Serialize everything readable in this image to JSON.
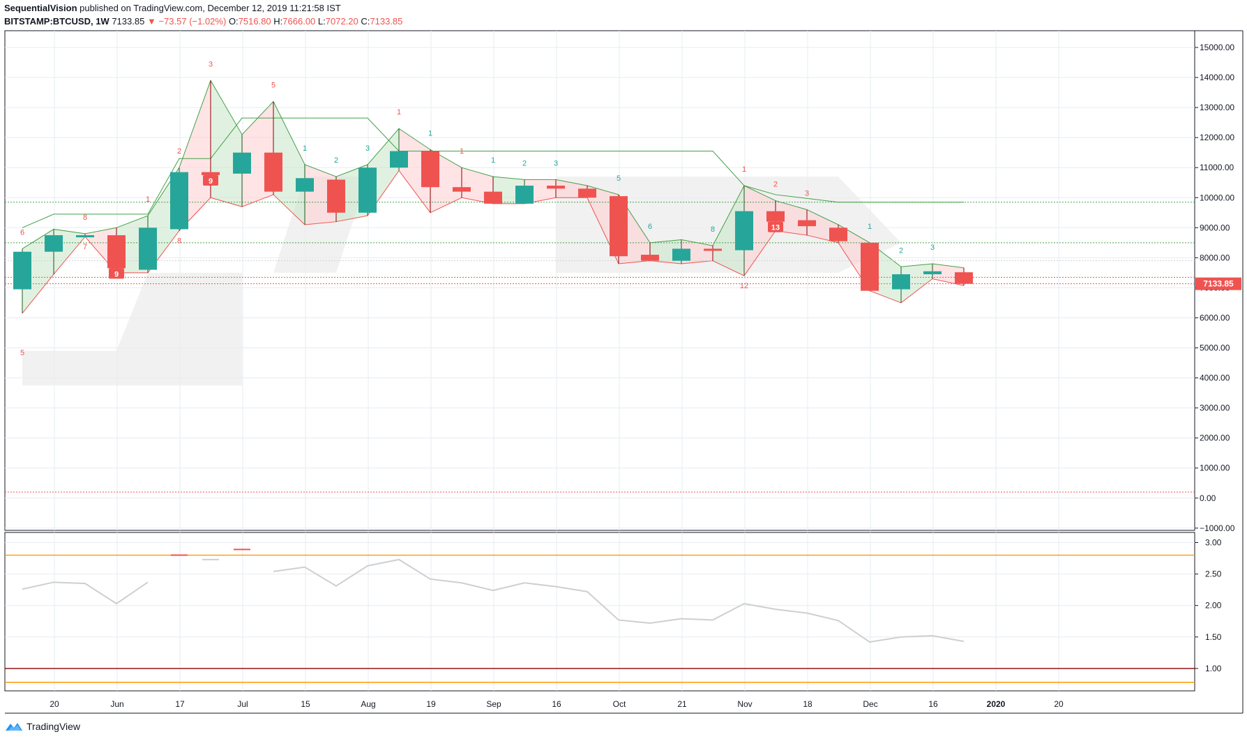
{
  "header": {
    "author": "SequentialVision",
    "published_text": "published on TradingView.com, December 12, 2019 11:21:58 IST",
    "symbol": "BITSTAMP:BTCUSD, 1W",
    "last": "7133.85",
    "change": "−73.57 (−1.02%)",
    "open_label": "O:",
    "open": "7516.80",
    "high_label": "H:",
    "high": "7666.00",
    "low_label": "L:",
    "low": "7072.20",
    "close_label": "C:",
    "close": "7133.85"
  },
  "footer": {
    "brand": "TradingView"
  },
  "colors": {
    "up": "#26a69a",
    "down": "#ef5350",
    "grid": "#e6ecf2",
    "line_green": "#43a047",
    "line_red": "#ef5350",
    "orange": "#ff9800",
    "maroon": "#8b0000",
    "gray_line": "#cfcfcf"
  },
  "chart_data": [
    {
      "type": "candlestick",
      "timeframe": "1W",
      "ylim": [
        -1000,
        15500
      ],
      "y_ticks": [
        "−1000.00",
        "0.00",
        "1000.00",
        "2000.00",
        "3000.00",
        "4000.00",
        "5000.00",
        "6000.00",
        "7000.00",
        "8000.00",
        "9000.00",
        "10000.00",
        "11000.00",
        "12000.00",
        "13000.00",
        "14000.00",
        "15000.00"
      ],
      "x_ticks": [
        "20",
        "Jun",
        "17",
        "Jul",
        "15",
        "Aug",
        "19",
        "Sep",
        "16",
        "Oct",
        "21",
        "Nov",
        "18",
        "Dec",
        "16",
        "2020",
        "20"
      ],
      "last_price_label": "7133.85",
      "candles": [
        {
          "o": 6950,
          "h": 8300,
          "l": 6150,
          "c": 8200
        },
        {
          "o": 8200,
          "h": 8950,
          "l": 7450,
          "c": 8750
        },
        {
          "o": 8750,
          "h": 8800,
          "l": 8700,
          "c": 8750
        },
        {
          "o": 8750,
          "h": 9000,
          "l": 7500,
          "c": 7650
        },
        {
          "o": 7600,
          "h": 9400,
          "l": 7500,
          "c": 9000
        },
        {
          "o": 8950,
          "h": 11000,
          "l": 8900,
          "c": 10850
        },
        {
          "o": 10850,
          "h": 13900,
          "l": 10000,
          "c": 10750
        },
        {
          "o": 10800,
          "h": 12100,
          "l": 9700,
          "c": 11500
        },
        {
          "o": 11500,
          "h": 13200,
          "l": 10100,
          "c": 10200
        },
        {
          "o": 10200,
          "h": 11100,
          "l": 9100,
          "c": 10650
        },
        {
          "o": 10600,
          "h": 10700,
          "l": 9200,
          "c": 9500
        },
        {
          "o": 9500,
          "h": 11100,
          "l": 9400,
          "c": 11000
        },
        {
          "o": 11000,
          "h": 12300,
          "l": 10900,
          "c": 11550
        },
        {
          "o": 11550,
          "h": 11600,
          "l": 9500,
          "c": 10350
        },
        {
          "o": 10350,
          "h": 11000,
          "l": 10000,
          "c": 10200
        },
        {
          "o": 10200,
          "h": 10700,
          "l": 9800,
          "c": 9800
        },
        {
          "o": 9800,
          "h": 10600,
          "l": 9800,
          "c": 10400
        },
        {
          "o": 10400,
          "h": 10600,
          "l": 10000,
          "c": 10300
        },
        {
          "o": 10300,
          "h": 10400,
          "l": 10000,
          "c": 10000
        },
        {
          "o": 10050,
          "h": 10100,
          "l": 7800,
          "c": 8050
        },
        {
          "o": 8100,
          "h": 8500,
          "l": 7900,
          "c": 7900
        },
        {
          "o": 7900,
          "h": 8600,
          "l": 7800,
          "c": 8300
        },
        {
          "o": 8300,
          "h": 8400,
          "l": 7900,
          "c": 8250
        },
        {
          "o": 8250,
          "h": 10400,
          "l": 7400,
          "c": 9550
        },
        {
          "o": 9550,
          "h": 9900,
          "l": 8900,
          "c": 9200
        },
        {
          "o": 9250,
          "h": 9600,
          "l": 8750,
          "c": 9050
        },
        {
          "o": 9000,
          "h": 9100,
          "l": 8500,
          "c": 8550
        },
        {
          "o": 8500,
          "h": 8500,
          "l": 6900,
          "c": 6900
        },
        {
          "o": 6950,
          "h": 7700,
          "l": 6500,
          "c": 7450
        },
        {
          "o": 7450,
          "h": 7800,
          "l": 7300,
          "c": 7550
        },
        {
          "o": 7516.8,
          "h": 7666,
          "l": 7072.2,
          "c": 7133.85
        }
      ],
      "sequential_labels": [
        {
          "i": 0,
          "text": "6",
          "pos": "above",
          "color": "down"
        },
        {
          "i": 0,
          "text": "5",
          "pos": "below-far",
          "color": "down"
        },
        {
          "i": 2,
          "text": "8",
          "pos": "above",
          "color": "down"
        },
        {
          "i": 2,
          "text": "7",
          "pos": "below",
          "color": "down"
        },
        {
          "i": 3,
          "text": "9",
          "pos": "boxed",
          "color": "down"
        },
        {
          "i": 4,
          "text": "1",
          "pos": "above",
          "color": "down"
        },
        {
          "i": 5,
          "text": "2",
          "pos": "above",
          "color": "down"
        },
        {
          "i": 5,
          "text": "8",
          "pos": "below",
          "color": "down"
        },
        {
          "i": 6,
          "text": "3",
          "pos": "above",
          "color": "down"
        },
        {
          "i": 6,
          "text": "9",
          "pos": "boxed",
          "color": "down"
        },
        {
          "i": 8,
          "text": "5",
          "pos": "above",
          "color": "down"
        },
        {
          "i": 9,
          "text": "1",
          "pos": "above",
          "color": "up"
        },
        {
          "i": 10,
          "text": "2",
          "pos": "above",
          "color": "up"
        },
        {
          "i": 11,
          "text": "3",
          "pos": "above",
          "color": "up"
        },
        {
          "i": 12,
          "text": "1",
          "pos": "above",
          "color": "down"
        },
        {
          "i": 13,
          "text": "1",
          "pos": "above",
          "color": "up"
        },
        {
          "i": 14,
          "text": "1",
          "pos": "above",
          "color": "down"
        },
        {
          "i": 15,
          "text": "1",
          "pos": "above",
          "color": "up"
        },
        {
          "i": 16,
          "text": "2",
          "pos": "above",
          "color": "up"
        },
        {
          "i": 17,
          "text": "3",
          "pos": "above",
          "color": "up"
        },
        {
          "i": 19,
          "text": "5",
          "pos": "above",
          "color": "up"
        },
        {
          "i": 20,
          "text": "6",
          "pos": "above",
          "color": "up"
        },
        {
          "i": 22,
          "text": "8",
          "pos": "above",
          "color": "up"
        },
        {
          "i": 23,
          "text": "1",
          "pos": "above",
          "color": "down"
        },
        {
          "i": 23,
          "text": "12",
          "pos": "below",
          "color": "down"
        },
        {
          "i": 24,
          "text": "2",
          "pos": "above",
          "color": "down"
        },
        {
          "i": 24,
          "text": "13",
          "pos": "boxed",
          "color": "down"
        },
        {
          "i": 25,
          "text": "3",
          "pos": "above",
          "color": "down"
        },
        {
          "i": 27,
          "text": "1",
          "pos": "above",
          "color": "up"
        },
        {
          "i": 28,
          "text": "2",
          "pos": "above",
          "color": "up"
        },
        {
          "i": 29,
          "text": "3",
          "pos": "above",
          "color": "up"
        }
      ],
      "horizontal_levels": [
        {
          "value": 9850,
          "color": "line_green",
          "style": "dotted"
        },
        {
          "value": 8500,
          "color": "line_green",
          "style": "dotted"
        },
        {
          "value": 7900,
          "color": "gray_line",
          "style": "dotted"
        },
        {
          "value": 7350,
          "color": "line_red",
          "style": "dotted"
        },
        {
          "value": 7133.85,
          "color": "line_red",
          "style": "dotted"
        },
        {
          "value": 200,
          "color": "line_red",
          "style": "dotted"
        }
      ]
    },
    {
      "type": "line",
      "ylim": [
        0.6,
        3.15
      ],
      "y_ticks": [
        "1.00",
        "1.50",
        "2.00",
        "2.50",
        "3.00"
      ],
      "reference_lines": [
        {
          "value": 2.8,
          "color": "orange"
        },
        {
          "value": 1.0,
          "color": "maroon"
        },
        {
          "value": 0.78,
          "color": "orange"
        }
      ],
      "values": [
        2.26,
        2.37,
        2.35,
        2.03,
        2.37,
        null,
        null,
        null,
        2.54,
        2.61,
        2.31,
        2.63,
        2.73,
        2.42,
        2.36,
        2.24,
        2.36,
        2.3,
        2.22,
        1.77,
        1.72,
        1.79,
        1.77,
        2.03,
        1.94,
        1.88,
        1.76,
        1.42,
        1.5,
        1.52,
        1.43
      ]
    }
  ]
}
